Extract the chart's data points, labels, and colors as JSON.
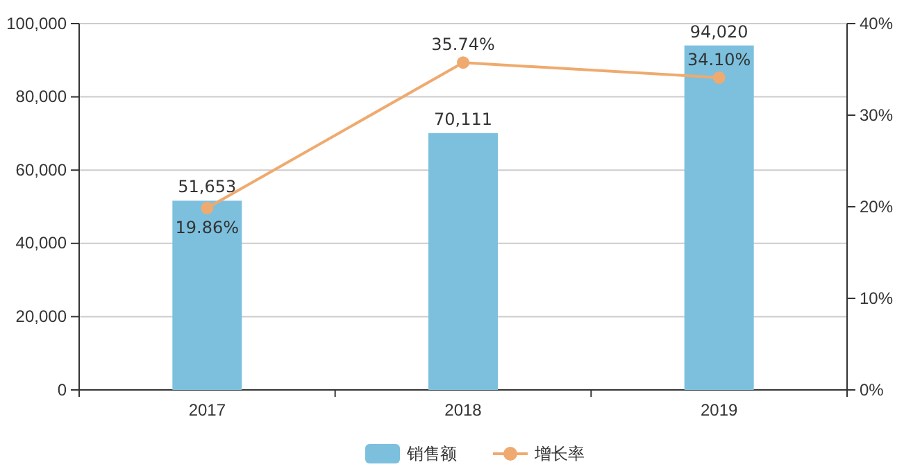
{
  "chart_data": {
    "type": "bar",
    "categories": [
      "2017",
      "2018",
      "2019"
    ],
    "series": [
      {
        "name": "销售额",
        "color": "#7cc0de",
        "values": [
          51653,
          70111,
          94020
        ],
        "value_labels": [
          "51,653",
          "70,111",
          "94,020"
        ]
      },
      {
        "name": "增长率",
        "type": "line",
        "axis": "y2",
        "color": "#efaa6f",
        "values": [
          19.86,
          35.74,
          34.1
        ],
        "value_labels": [
          "19.86%",
          "35.74%",
          "34.10%"
        ],
        "marker": "circle"
      }
    ],
    "ylim": [
      0,
      100000
    ],
    "yticks": [
      {
        "value": 0,
        "label": "0"
      },
      {
        "value": 20000,
        "label": "20,000"
      },
      {
        "value": 40000,
        "label": "40,000"
      },
      {
        "value": 60000,
        "label": "60,000"
      },
      {
        "value": 80000,
        "label": "80,000"
      },
      {
        "value": 100000,
        "label": "100,000"
      }
    ],
    "y2lim": [
      0,
      40
    ],
    "y2ticks": [
      {
        "value": 0,
        "label": "0%"
      },
      {
        "value": 10,
        "label": "10%"
      },
      {
        "value": 20,
        "label": "20%"
      },
      {
        "value": 30,
        "label": "30%"
      },
      {
        "value": 40,
        "label": "40%"
      }
    ],
    "grid": "y",
    "legend": "bottom"
  }
}
